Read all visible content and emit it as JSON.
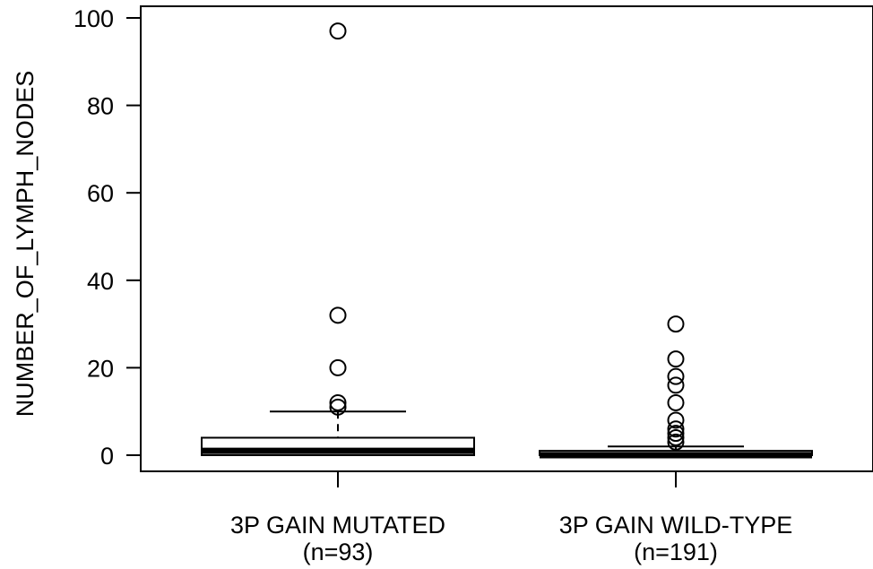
{
  "chart_data": {
    "type": "box",
    "ylabel": "NUMBER_OF_LYMPH_NODES",
    "ylim": [
      -3,
      100
    ],
    "yticks": [
      0,
      20,
      40,
      60,
      80,
      100
    ],
    "groups": [
      {
        "label": "3P GAIN MUTATED",
        "n_label": "(n=93)",
        "min": 0,
        "q1": 0,
        "median": 1,
        "q3": 4,
        "max": 10,
        "outliers": [
          11,
          12,
          20,
          32,
          97
        ]
      },
      {
        "label": "3P GAIN WILD-TYPE",
        "n_label": "(n=191)",
        "min": 0,
        "q1": 0,
        "median": 0,
        "q3": 1,
        "max": 2,
        "outliers": [
          3,
          4,
          5,
          6,
          8,
          12,
          16,
          18,
          22,
          30
        ]
      }
    ]
  }
}
